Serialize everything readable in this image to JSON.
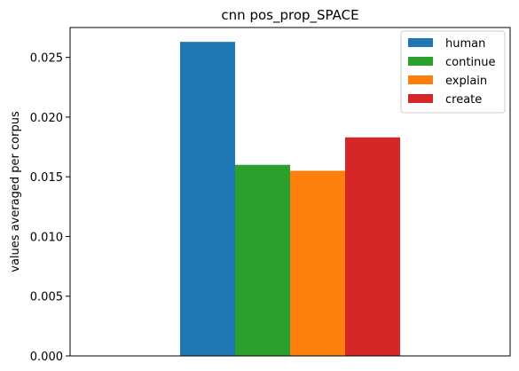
{
  "chart_data": {
    "type": "bar",
    "title": "cnn pos_prop_SPACE",
    "xlabel": "",
    "ylabel": "values averaged per corpus",
    "ylim": [
      0,
      0.0275
    ],
    "yticks": [
      "0.000",
      "0.005",
      "0.010",
      "0.015",
      "0.020",
      "0.025"
    ],
    "ytick_values": [
      0,
      0.005,
      0.01,
      0.015,
      0.02,
      0.025
    ],
    "grid": false,
    "legend_position": "top-right",
    "series": [
      {
        "name": "human",
        "value": 0.0263,
        "color": "#1f77b4"
      },
      {
        "name": "continue",
        "value": 0.016,
        "color": "#2ca02c"
      },
      {
        "name": "explain",
        "value": 0.0155,
        "color": "#ff7f0e"
      },
      {
        "name": "create",
        "value": 0.0183,
        "color": "#d62728"
      }
    ]
  }
}
